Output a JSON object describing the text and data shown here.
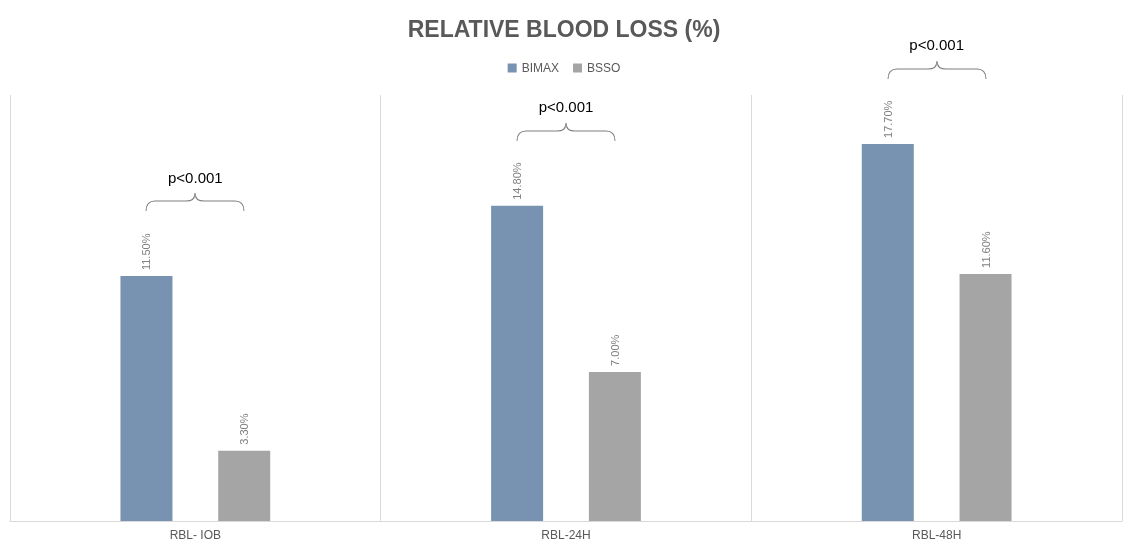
{
  "chart_data": {
    "type": "bar",
    "title": "RELATIVE BLOOD LOSS (%)",
    "categories": [
      "RBL- IOB",
      "RBL-24H",
      "RBL-48H"
    ],
    "series": [
      {
        "name": "BIMAX",
        "color": "#7892b1",
        "values": [
          11.5,
          14.8,
          17.7
        ],
        "value_labels": [
          "11.50%",
          "14.80%",
          "17.70%"
        ]
      },
      {
        "name": "BSSO",
        "color": "#a5a5a5",
        "values": [
          3.3,
          7.0,
          11.6
        ],
        "value_labels": [
          "3.30%",
          "7.00%",
          "11.60%"
        ]
      }
    ],
    "annotations": [
      "p<0.001",
      "p<0.001",
      "p<0.001"
    ],
    "legend": "top",
    "grid": "x"
  }
}
